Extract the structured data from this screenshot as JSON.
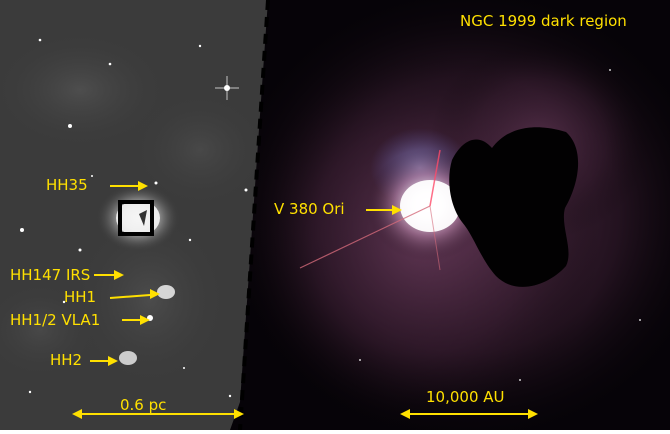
{
  "left_panel": {
    "labels": {
      "hh35": "HH35",
      "hh147_irs": "HH147 IRS",
      "hh1": "HH1",
      "hh1_2_vla1": "HH1/2 VLA1",
      "hh2": "HH2"
    },
    "scale_bar_label": "0.6 pc"
  },
  "right_panel": {
    "title": "NGC 1999 dark region",
    "star_label": "V 380 Ori",
    "scale_bar_label": "10,000 AU"
  },
  "colors": {
    "annotation": "#ffe000",
    "divider": "#000000",
    "left_background": "#3a3a3a",
    "right_background": "#050308"
  }
}
